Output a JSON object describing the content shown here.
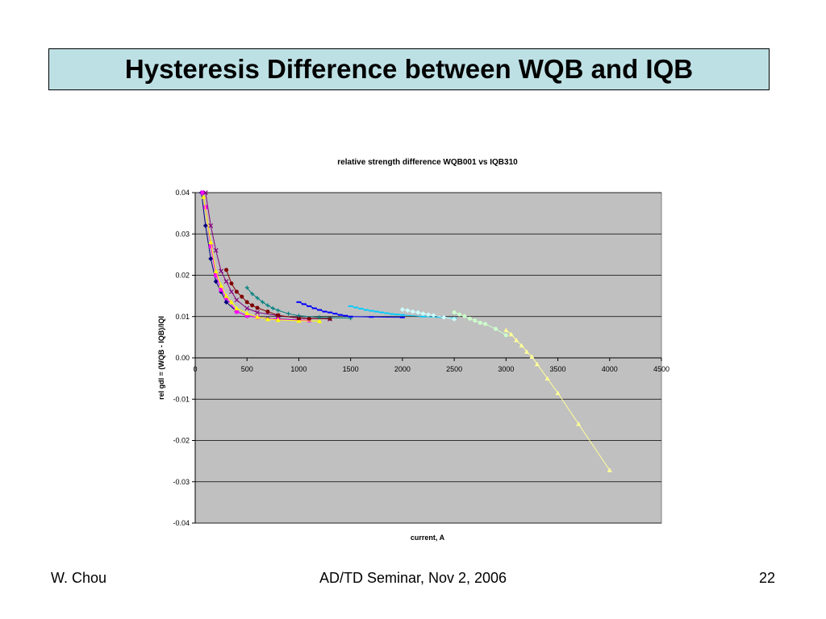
{
  "slide": {
    "title": "Hysteresis Difference between WQB and IQB"
  },
  "footer": {
    "left": "W. Chou",
    "center": "AD/TD Seminar, Nov 2, 2006",
    "right": "22"
  },
  "chart_data": {
    "type": "scatter",
    "title": "relative strength difference WQB001 vs IQB310",
    "xlabel": "current, A",
    "ylabel": "rel gdl = (WQB - IQB)/IQI",
    "xlim": [
      0,
      4500
    ],
    "ylim": [
      -0.04,
      0.04
    ],
    "xticks": [
      0,
      500,
      1000,
      1500,
      2000,
      2500,
      3000,
      3500,
      4000,
      4500
    ],
    "yticks": [
      0.04,
      0.03,
      0.02,
      0.01,
      0.0,
      -0.01,
      -0.02,
      -0.03,
      -0.04
    ],
    "ytick_labels": [
      "0.04",
      "0.03",
      "0.02",
      "0.01",
      "0.00",
      "-0.01",
      "-0.02",
      "-0.03",
      "-0.04"
    ],
    "grid": "horizontal",
    "plot_background": "#c0c0c0",
    "legend": "none",
    "series": [
      {
        "color": "#000080",
        "marker": "diamond",
        "x": [
          60,
          100,
          150,
          200,
          250,
          300,
          400,
          500,
          700,
          1000
        ],
        "y": [
          0.04,
          0.032,
          0.024,
          0.0185,
          0.016,
          0.0135,
          0.0112,
          0.0102,
          0.0095,
          0.0092
        ]
      },
      {
        "color": "#ff00ff",
        "marker": "square",
        "x": [
          70,
          100,
          150,
          200,
          250,
          300,
          400,
          500,
          600,
          800,
          1100
        ],
        "y": [
          0.04,
          0.0365,
          0.027,
          0.02,
          0.0165,
          0.0145,
          0.0112,
          0.0102,
          0.0098,
          0.0093,
          0.0091
        ]
      },
      {
        "color": "#ffff00",
        "marker": "triangle",
        "x": [
          80,
          150,
          200,
          250,
          300,
          350,
          400,
          500,
          600,
          700,
          800,
          1000,
          1200
        ],
        "y": [
          0.039,
          0.028,
          0.021,
          0.0175,
          0.015,
          0.0135,
          0.012,
          0.0108,
          0.0099,
          0.0094,
          0.0092,
          0.009,
          0.0089
        ]
      },
      {
        "color": "#800080",
        "marker": "x",
        "x": [
          100,
          150,
          200,
          250,
          300,
          350,
          400,
          500,
          600,
          800,
          1000,
          1300
        ],
        "y": [
          0.04,
          0.032,
          0.026,
          0.021,
          0.0185,
          0.016,
          0.014,
          0.012,
          0.011,
          0.0102,
          0.0097,
          0.0094
        ]
      },
      {
        "color": "#800000",
        "marker": "circle",
        "x": [
          300,
          350,
          400,
          450,
          500,
          550,
          600,
          700,
          800,
          1000,
          1100,
          1300
        ],
        "y": [
          0.0213,
          0.018,
          0.016,
          0.0148,
          0.0135,
          0.0127,
          0.0121,
          0.0112,
          0.0103,
          0.0096,
          0.0095,
          0.0095
        ]
      },
      {
        "color": "#008080",
        "marker": "plus",
        "x": [
          500,
          550,
          600,
          650,
          700,
          750,
          800,
          900,
          1000,
          1200,
          1500
        ],
        "y": [
          0.017,
          0.0155,
          0.0145,
          0.0135,
          0.0127,
          0.012,
          0.0115,
          0.0107,
          0.0102,
          0.0098,
          0.0096
        ]
      },
      {
        "color": "#0000ff",
        "marker": "dash",
        "x": [
          1000,
          1050,
          1100,
          1150,
          1200,
          1250,
          1300,
          1350,
          1400,
          1450,
          1500,
          1700,
          2000
        ],
        "y": [
          0.0135,
          0.013,
          0.0125,
          0.012,
          0.0116,
          0.0112,
          0.011,
          0.0107,
          0.0104,
          0.0102,
          0.01,
          0.0099,
          0.0098
        ]
      },
      {
        "color": "#00ccff",
        "marker": "dash",
        "x": [
          1500,
          1550,
          1600,
          1650,
          1700,
          1750,
          1800,
          1850,
          1900,
          1950,
          2000,
          2200,
          2500
        ],
        "y": [
          0.0125,
          0.0122,
          0.0119,
          0.0116,
          0.0114,
          0.0112,
          0.011,
          0.0108,
          0.0106,
          0.0105,
          0.0104,
          0.01,
          0.0096
        ]
      },
      {
        "color": "#ccffff",
        "marker": "diamond",
        "x": [
          2000,
          2050,
          2100,
          2150,
          2200,
          2250,
          2300,
          2400,
          2500
        ],
        "y": [
          0.0117,
          0.0115,
          0.0112,
          0.011,
          0.0107,
          0.0105,
          0.0103,
          0.0098,
          0.0094
        ]
      },
      {
        "color": "#ccffcc",
        "marker": "circle",
        "x": [
          2500,
          2550,
          2600,
          2650,
          2700,
          2750,
          2800,
          2900,
          3000
        ],
        "y": [
          0.011,
          0.0105,
          0.0101,
          0.0095,
          0.009,
          0.0085,
          0.0082,
          0.007,
          0.0055
        ]
      },
      {
        "color": "#ffff99",
        "marker": "triangle",
        "x": [
          3000,
          3050,
          3100,
          3150,
          3200,
          3250,
          3300,
          3400,
          3500,
          3700,
          4000
        ],
        "y": [
          0.0067,
          0.0057,
          0.0043,
          0.003,
          0.0015,
          0.0003,
          -0.0015,
          -0.005,
          -0.0085,
          -0.016,
          -0.0272
        ]
      }
    ]
  }
}
